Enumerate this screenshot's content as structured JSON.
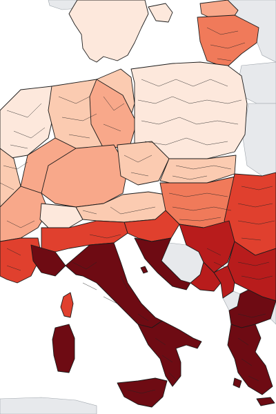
{
  "map": {
    "type": "choropleth",
    "colors": {
      "c1": "#fde8dc",
      "c2": "#fbcbb1",
      "c3": "#f8a88a",
      "c4": "#f07a5a",
      "c5": "#e0402e",
      "c6": "#b81c1c",
      "c7": "#6e0b13",
      "nodata": "#e7e9ec",
      "sea": "#ffffff",
      "border": "#1a1a1a"
    }
  }
}
